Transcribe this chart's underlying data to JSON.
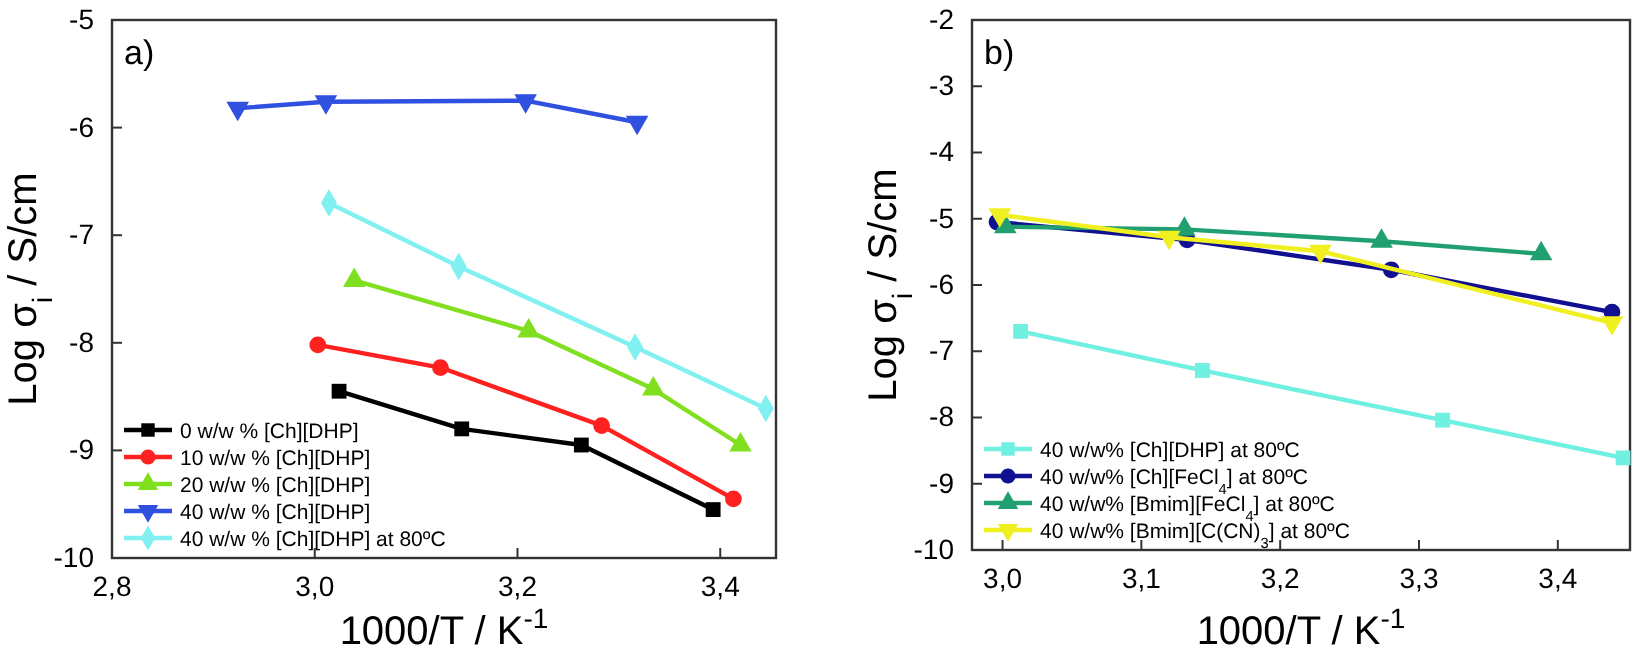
{
  "chart_data": [
    {
      "type": "line",
      "xlabel": "1000/T / K$^{-1}$",
      "ylabel": "Log σ$_{i}$ / S/cm",
      "annotations": [
        "a)"
      ],
      "legend": "bottom left",
      "xlim": [
        2.8,
        3.455
      ],
      "ylim": [
        -10,
        -5
      ],
      "xticks": [
        {
          "value": 2.8,
          "label": "2,8"
        },
        {
          "value": 3.0,
          "label": "3,0"
        },
        {
          "value": 3.2,
          "label": "3,2"
        },
        {
          "value": 3.4,
          "label": "3,4"
        }
      ],
      "yticks": [
        -10,
        -9,
        -8,
        -7,
        -6,
        -5
      ],
      "series": [
        {
          "name": "0 w/w % [Ch][DHP]",
          "color": "#000000",
          "marker": "square",
          "x": [
            3.024,
            3.145,
            3.263,
            3.393
          ],
          "values": [
            -8.45,
            -8.8,
            -8.95,
            -9.55
          ]
        },
        {
          "name": "10 w/w % [Ch][DHP]",
          "color": "#ff2020",
          "marker": "circle",
          "x": [
            3.003,
            3.124,
            3.283,
            3.413
          ],
          "values": [
            -8.02,
            -8.23,
            -8.77,
            -9.45
          ]
        },
        {
          "name": "20 w/w % [Ch][DHP]",
          "color": "#80e020",
          "marker": "triangle",
          "x": [
            3.039,
            3.211,
            3.334,
            3.42
          ],
          "values": [
            -7.42,
            -7.89,
            -8.43,
            -8.95
          ]
        },
        {
          "name": "40 w/w % [Ch][DHP]",
          "color": "#3050e0",
          "marker": "triangle-down",
          "x": [
            2.924,
            3.011,
            3.208,
            3.318
          ],
          "values": [
            -5.82,
            -5.76,
            -5.75,
            -5.95
          ]
        },
        {
          "name": "40 w/w % [Ch][DHP] at 80ºC",
          "color": "#80f0f0",
          "marker": "diamond",
          "x": [
            3.014,
            3.142,
            3.316,
            3.445
          ],
          "values": [
            -6.7,
            -7.29,
            -8.04,
            -8.61
          ]
        }
      ]
    },
    {
      "type": "line",
      "xlabel": "1000/T / K$^{-1}$",
      "ylabel": "Log σ$_{i}$ / S/cm",
      "annotations": [
        "b)"
      ],
      "legend": "bottom left",
      "xlim": [
        2.978,
        3.452
      ],
      "ylim": [
        -10,
        -2
      ],
      "xticks": [
        {
          "value": 3.0,
          "label": "3,0"
        },
        {
          "value": 3.1,
          "label": "3,1"
        },
        {
          "value": 3.2,
          "label": "3,2"
        },
        {
          "value": 3.3,
          "label": "3,3"
        },
        {
          "value": 3.4,
          "label": "3,4"
        }
      ],
      "yticks": [
        -10,
        -9,
        -8,
        -7,
        -6,
        -5,
        -4,
        -3,
        -2
      ],
      "series": [
        {
          "name": "40 w/w% [Ch][DHP] at 80ºC",
          "color": "#70f0e0",
          "marker": "square",
          "x": [
            3.013,
            3.144,
            3.317,
            3.447
          ],
          "values": [
            -6.7,
            -7.29,
            -8.04,
            -8.61
          ]
        },
        {
          "name": "40 w/w% [Ch][FeCl$_{4}$] at 80ºC",
          "color": "#101090",
          "marker": "circle",
          "x": [
            2.996,
            3.133,
            3.28,
            3.439
          ],
          "values": [
            -5.05,
            -5.32,
            -5.77,
            -6.41
          ]
        },
        {
          "name": "40 w/w% [Bmim][FeCl$_{4}$] at 80ºC",
          "color": "#20a070",
          "marker": "triangle",
          "x": [
            3.002,
            3.131,
            3.273,
            3.388
          ],
          "values": [
            -5.12,
            -5.16,
            -5.34,
            -5.53
          ]
        },
        {
          "name": "40 w/w% [Bmim][C(CN)$_{3}$] at 80ºC",
          "color": "#f0f020",
          "marker": "triangle-down",
          "x": [
            2.998,
            3.12,
            3.229,
            3.439
          ],
          "values": [
            -4.94,
            -5.28,
            -5.49,
            -6.57
          ]
        }
      ]
    }
  ]
}
